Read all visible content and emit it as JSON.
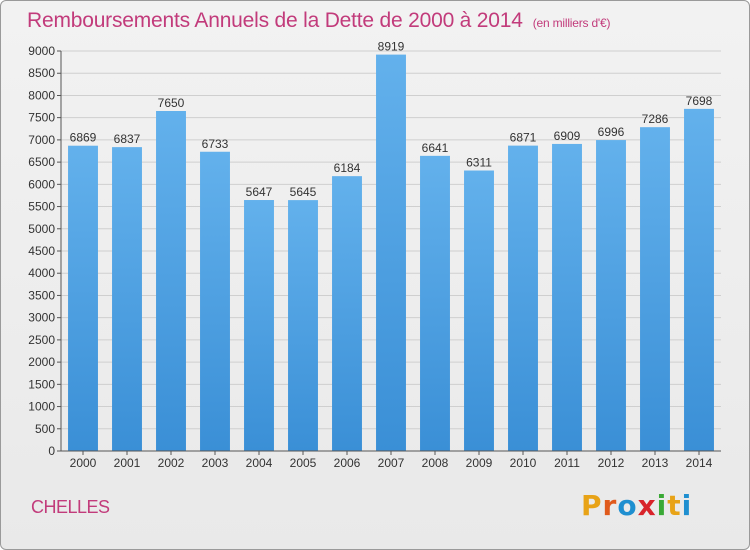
{
  "header": {
    "title": "Remboursements Annuels de la Dette de 2000 à 2014",
    "unit_note": "(en milliers d'€)"
  },
  "footer": {
    "city": "CHELLES",
    "brand": "Proxiti",
    "brand_colors": [
      "#e8a317",
      "#e05a1c",
      "#1f8fd0",
      "#d8232a",
      "#39a935",
      "#e8a317",
      "#1f8fd0"
    ]
  },
  "chart_data": {
    "type": "bar",
    "title": "Remboursements Annuels de la Dette de 2000 à 2014",
    "subtitle": "(en milliers d'€)",
    "xlabel": "",
    "ylabel": "",
    "categories": [
      "2000",
      "2001",
      "2002",
      "2003",
      "2004",
      "2005",
      "2006",
      "2007",
      "2008",
      "2009",
      "2010",
      "2011",
      "2012",
      "2013",
      "2014"
    ],
    "values": [
      6869,
      6837,
      7650,
      6733,
      5647,
      5645,
      6184,
      8919,
      6641,
      6311,
      6871,
      6909,
      6996,
      7286,
      7698
    ],
    "ylim": [
      0,
      9000
    ],
    "yticks": [
      0,
      500,
      1000,
      1500,
      2000,
      2500,
      3000,
      3500,
      4000,
      4500,
      5000,
      5500,
      6000,
      6500,
      7000,
      7500,
      8000,
      8500,
      9000
    ],
    "grid": true,
    "bar_color": "#3a8fd6",
    "bar_color_light": "#63b1ec"
  }
}
